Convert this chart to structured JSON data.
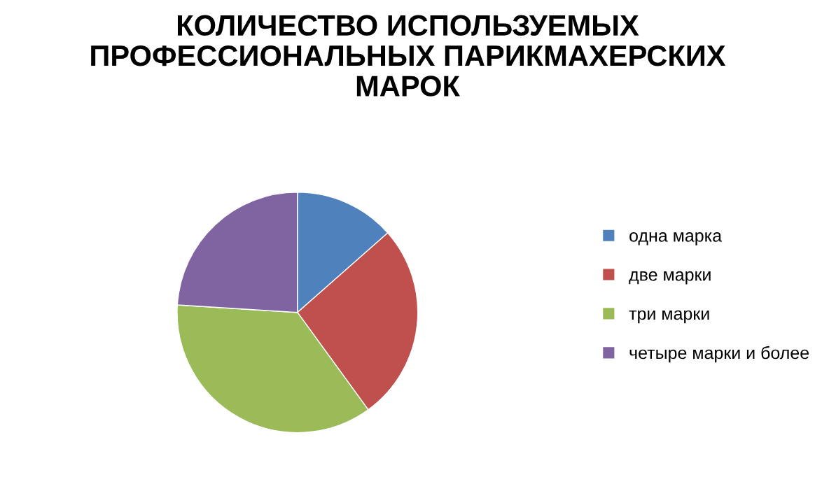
{
  "chart_data": {
    "type": "pie",
    "title": "КОЛИЧЕСТВО ИСПОЛЬЗУЕМЫХ\nПРОФЕССИОНАЛЬНЫХ ПАРИКМАХЕРСКИХ\nМАРОК",
    "categories": [
      "одна марка",
      "две марки",
      "три марки",
      "четыре марки и более"
    ],
    "values": [
      13.5,
      26.5,
      36,
      24
    ],
    "colors": [
      "#4f81bd",
      "#c0504d",
      "#9bbb59",
      "#8064a2"
    ],
    "legend": "right"
  }
}
